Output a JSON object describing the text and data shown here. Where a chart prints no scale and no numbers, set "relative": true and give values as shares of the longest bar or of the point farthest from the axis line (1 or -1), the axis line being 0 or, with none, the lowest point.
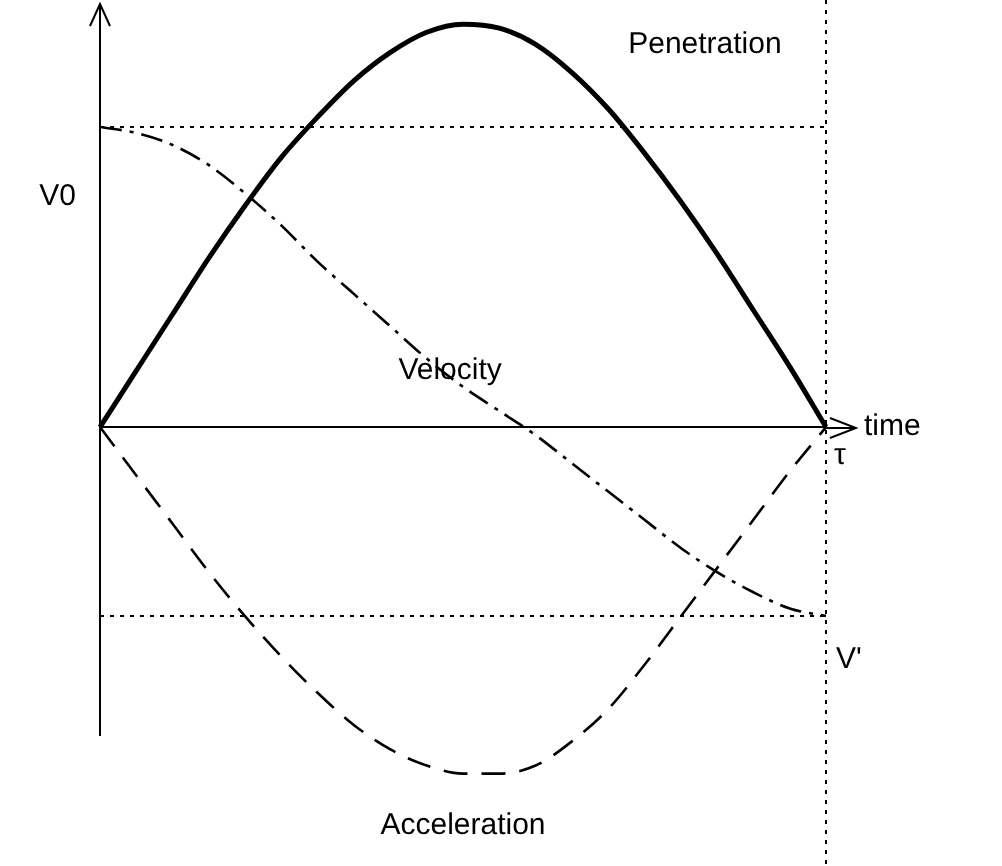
{
  "chart_data": {
    "type": "line",
    "relative": true,
    "xlabel": "time",
    "legend": false,
    "marker": "none",
    "categories": [
      null,
      null,
      null,
      null,
      null,
      null,
      null,
      null,
      null,
      null,
      null,
      null,
      null,
      null,
      null,
      null,
      null,
      null,
      null,
      null,
      null
    ],
    "series": [
      {
        "name": "Penetration",
        "color": "#000000",
        "line_style": "solid",
        "values": [
          0,
          0.14,
          0.28,
          0.42,
          0.55,
          0.67,
          0.77,
          0.86,
          0.93,
          0.98,
          1.0,
          0.99,
          0.95,
          0.88,
          0.79,
          0.68,
          0.56,
          0.43,
          0.29,
          0.15,
          0
        ]
      },
      {
        "name": "Velocity",
        "color": "#000000",
        "line_style": "dashdot",
        "values": [
          0.745,
          0.73,
          0.7,
          0.65,
          0.58,
          0.5,
          0.41,
          0.33,
          0.25,
          0.17,
          0.1,
          0.04,
          -0.02,
          -0.09,
          -0.16,
          -0.23,
          -0.3,
          -0.36,
          -0.41,
          -0.45,
          -0.469
        ]
      },
      {
        "name": "Acceleration",
        "color": "#000000",
        "line_style": "dashed",
        "values": [
          0,
          -0.12,
          -0.24,
          -0.36,
          -0.47,
          -0.57,
          -0.66,
          -0.74,
          -0.8,
          -0.84,
          -0.86,
          -0.86,
          -0.84,
          -0.78,
          -0.7,
          -0.59,
          -0.47,
          -0.35,
          -0.23,
          -0.11,
          0
        ]
      }
    ],
    "ref_lines": [
      {
        "axis": "y",
        "value": 0.745,
        "label": "V0",
        "line_style": "dotted"
      },
      {
        "axis": "y",
        "value": -0.469,
        "label": "V'",
        "line_style": "dotted"
      },
      {
        "axis": "x",
        "label": "τ",
        "line_style": "dotted"
      }
    ]
  }
}
